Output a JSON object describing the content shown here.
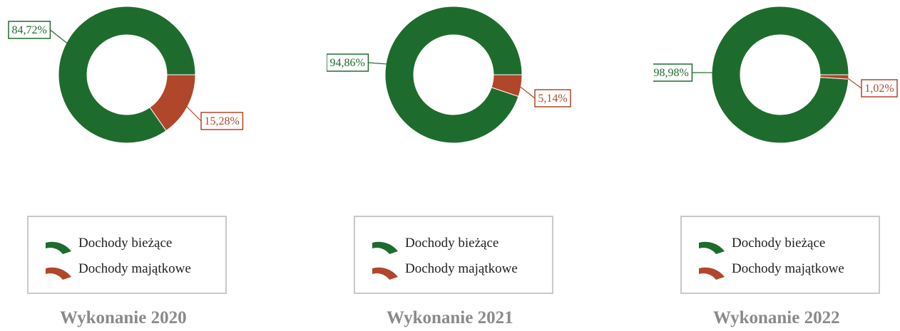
{
  "colors": {
    "current": "#1e6b2e",
    "capital": "#b0462a"
  },
  "chart_data": [
    {
      "type": "pie",
      "title": "Wykonanie 2020",
      "categories": [
        "Dochody bieżące",
        "Dochody majątkowe"
      ],
      "values": [
        84.72,
        15.28
      ],
      "value_labels": [
        "84,72%",
        "15,28%"
      ],
      "legend": {
        "placement": "bottom",
        "entries": [
          "Dochody bieżące",
          "Dochody majątkowe"
        ]
      }
    },
    {
      "type": "pie",
      "title": "Wykonanie 2021",
      "categories": [
        "Dochody bieżące",
        "Dochody majątkowe"
      ],
      "values": [
        94.86,
        5.14
      ],
      "value_labels": [
        "94,86%",
        "5,14%"
      ],
      "legend": {
        "placement": "bottom",
        "entries": [
          "Dochody bieżące",
          "Dochody majątkowe"
        ]
      }
    },
    {
      "type": "pie",
      "title": "Wykonanie 2022",
      "categories": [
        "Dochody bieżące",
        "Dochody majątkowe"
      ],
      "values": [
        98.98,
        1.02
      ],
      "value_labels": [
        "98,98%",
        "1,02%"
      ],
      "legend": {
        "placement": "bottom",
        "entries": [
          "Dochody bieżące",
          "Dochody majątkowe"
        ]
      }
    }
  ]
}
